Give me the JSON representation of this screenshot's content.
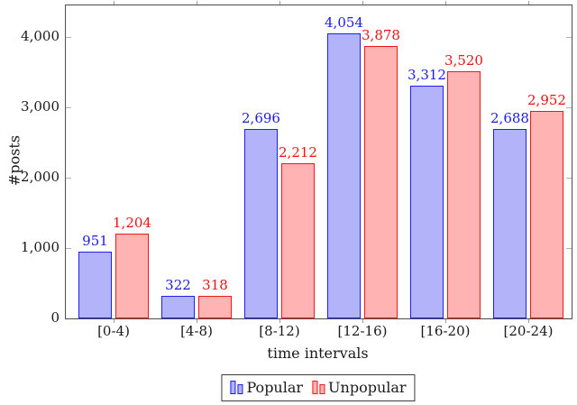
{
  "chart_data": {
    "type": "bar",
    "title": "",
    "xlabel": "time intervals",
    "ylabel": "#posts",
    "categories": [
      "[0-4)",
      "[4-8)",
      "[8-12)",
      "[12-16)",
      "[16-20)",
      "[20-24)"
    ],
    "series": [
      {
        "name": "Popular",
        "values": [
          951,
          322,
          2696,
          4054,
          3312,
          2688
        ],
        "value_labels": [
          "951",
          "322",
          "2,696",
          "4,054",
          "3,312",
          "2,688"
        ],
        "fill": "#b3b3fa",
        "stroke": "#1f1ff2",
        "label_color": "#1c1ce0"
      },
      {
        "name": "Unpopular",
        "values": [
          1204,
          318,
          2212,
          3878,
          3520,
          2952
        ],
        "value_labels": [
          "1,204",
          "318",
          "2,212",
          "3,878",
          "3,520",
          "2,952"
        ],
        "fill": "#ffb3b3",
        "stroke": "#f21717",
        "label_color": "#e81414"
      }
    ],
    "ylim": [
      0,
      4450
    ],
    "yticks": [
      0,
      1000,
      2000,
      3000,
      4000
    ],
    "ytick_labels": [
      "0",
      "1,000",
      "2,000",
      "3,000",
      "4,000"
    ],
    "legend": {
      "entries": [
        "Popular",
        "Unpopular"
      ],
      "position": "below-center"
    },
    "grid": false,
    "colors": {
      "axis": "#4d4d4d",
      "tick": "#b3b3b3",
      "text": "#1a1a1a",
      "background": "#ffffff"
    }
  }
}
